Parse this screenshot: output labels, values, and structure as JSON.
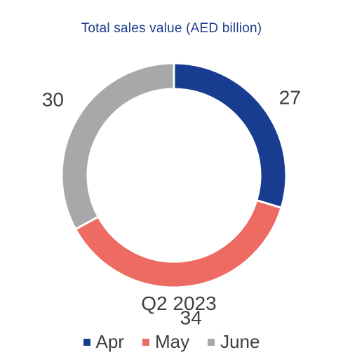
{
  "chart_data": {
    "type": "pie",
    "variant": "donut",
    "title": "Total sales value (AED billion)",
    "center_label": "Q2 2023",
    "categories": [
      "Apr",
      "May",
      "June"
    ],
    "values": [
      27,
      34,
      30
    ],
    "colors": [
      "#183c8f",
      "#ee6b63",
      "#a8a8aa"
    ],
    "legend_position": "bottom",
    "data_labels": [
      "27",
      "34",
      "30"
    ]
  }
}
